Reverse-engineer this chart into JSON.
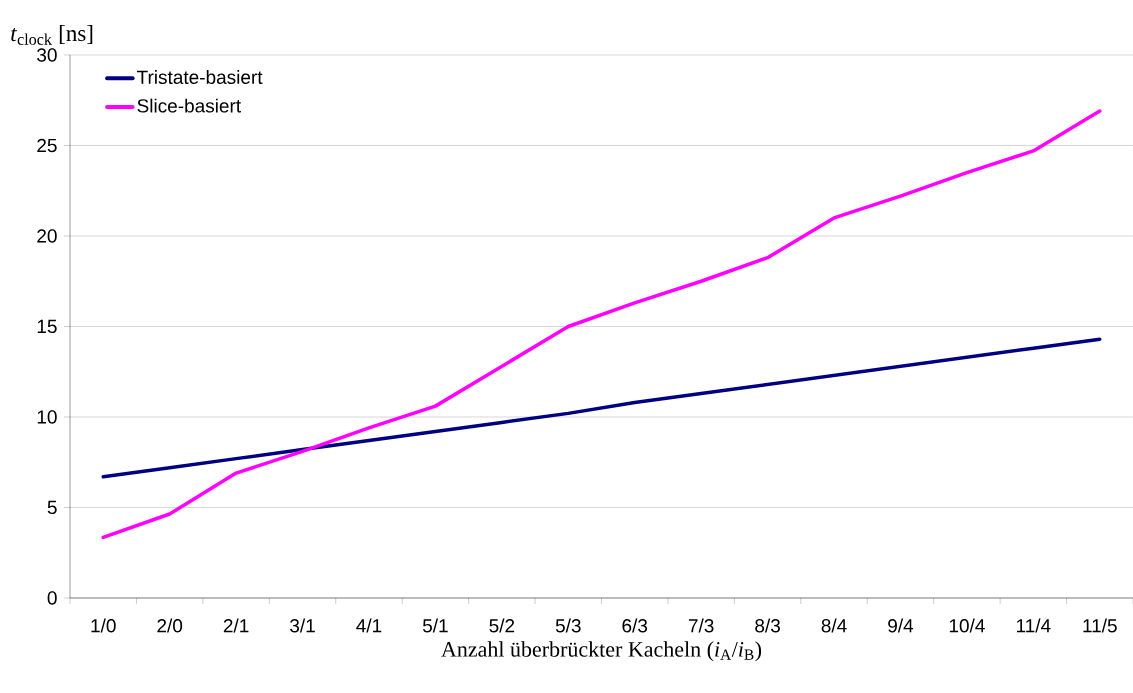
{
  "chart_data": {
    "type": "line",
    "xlabel": "Anzahl überbrückter Kacheln (*i*$_{A}$/*i*$_{B}$)",
    "ylabel": "*t*$_{clock}$ [ns]",
    "categories": [
      "1/0",
      "2/0",
      "2/1",
      "3/1",
      "4/1",
      "5/1",
      "5/2",
      "5/3",
      "6/3",
      "7/3",
      "8/3",
      "8/4",
      "9/4",
      "10/4",
      "11/4",
      "11/5"
    ],
    "series": [
      {
        "name": "Tristate-basiert",
        "color": "#000080",
        "values": [
          6.7,
          7.2,
          7.7,
          8.2,
          8.7,
          9.2,
          9.7,
          10.2,
          10.8,
          11.3,
          11.8,
          12.3,
          12.8,
          13.3,
          13.8,
          14.3
        ]
      },
      {
        "name": "Slice-basiert",
        "color": "#ff00ff",
        "values": [
          3.35,
          4.64,
          6.9,
          8.1,
          9.4,
          10.6,
          12.8,
          15.0,
          16.3,
          17.5,
          18.8,
          21.0,
          22.2,
          23.5,
          24.7,
          26.9
        ]
      }
    ],
    "ylim": [
      0,
      30
    ],
    "yticks": [
      0,
      5,
      10,
      15,
      20,
      25,
      30
    ],
    "grid": "y",
    "legend": "top left",
    "marker": "none",
    "line_style": "solid"
  }
}
